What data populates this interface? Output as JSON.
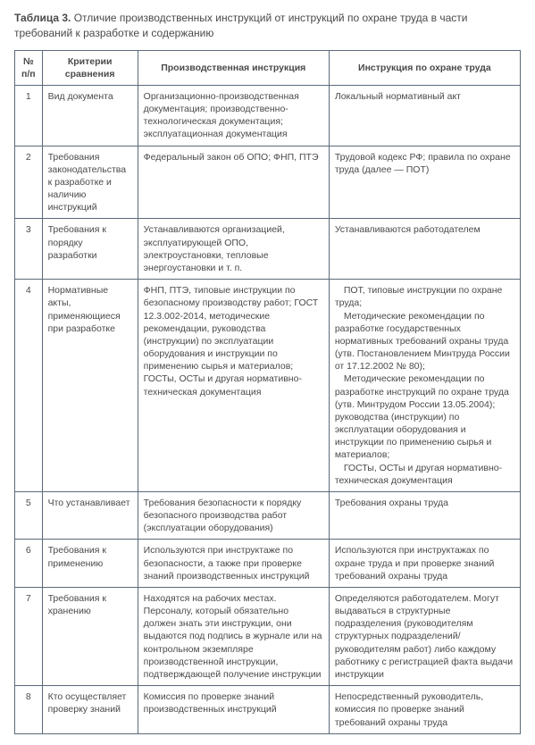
{
  "caption": {
    "bold": "Таблица 3.",
    "rest": " Отличие производственных инструкций от инструкций по охране труда в части требований к разработке и содержанию"
  },
  "headers": {
    "num": "№ п/п",
    "criteria": "Критерии сравнения",
    "prod": "Производственная инструкция",
    "safety": "Инструкция по охране труда"
  },
  "rows": [
    {
      "n": "1",
      "crit": "Вид документа",
      "prod": "Организационно-производственная документация; производственно-технологическая документация; эксплуатационная документация",
      "safety": "Локальный нормативный акт"
    },
    {
      "n": "2",
      "crit": "Требования законодательства к разработке и наличию инструкций",
      "prod": "Федеральный закон об ОПО; ФНП, ПТЭ",
      "safety": "Трудовой кодекс РФ; правила по охране труда (далее — ПОТ)"
    },
    {
      "n": "3",
      "crit": "Требования к порядку разработки",
      "prod": "Устанавливаются организацией, эксплуатирующей ОПО, электроустановки, тепловые энергоустановки и т. п.",
      "safety": "Устанавливаются работодателем"
    },
    {
      "n": "4",
      "crit": "Нормативные акты, применяющиеся при разработке",
      "prod": "ФНП, ПТЭ, типовые инструкции по безопасному производству работ; ГОСТ 12.3.002-2014, методические рекомендации, руководства (инструкции) по эксплуатации оборудования и инструкции по применению сырья и материалов; ГОСТы, ОСТы и другая нормативно-техническая документация",
      "safety_multi": [
        "ПОТ, типовые инструкции по охране труда;",
        "Методические рекомендации по разработке государственных нормативных требований охраны труда (утв. Постановлением Минтруда России от 17.12.2002 № 80);",
        "Методические рекомендации по разработке инструкций по охране труда (утв. Минтрудом России 13.05.2004); руководства (инструкции) по эксплуатации оборудования и инструкции по применению сырья и материалов;",
        "ГОСТы, ОСТы и другая нормативно-техническая документация"
      ]
    },
    {
      "n": "5",
      "crit": "Что устанавливает",
      "prod": "Требования безопасности к порядку безопасного производства работ (эксплуатации оборудования)",
      "safety": "Требования охраны труда"
    },
    {
      "n": "6",
      "crit": "Требования к применению",
      "prod": "Используются при инструктаже по безопасности, а также при проверке знаний производственных инструкций",
      "safety": "Используются при инструктажах по охране труда и при проверке знаний требований охраны труда"
    },
    {
      "n": "7",
      "crit": "Требования к хранению",
      "prod": "Находятся на рабочих местах. Персоналу, который обязательно должен знать эти инструкции, они выдаются под подпись в журнале или на контрольном экземпляре производственной инструкции, подтверждающей получение инструкции",
      "safety": "Определяются работодателем. Могут выдаваться в структурные подразделения (руководителям структурных подразделений/руководителям работ) либо каждому работнику с регистрацией факта выдачи инструкции"
    },
    {
      "n": "8",
      "crit": "Кто осуществляет проверку знаний",
      "prod": "Комиссия по проверке знаний производственных инструкций",
      "safety": "Непосредственный руководитель, комиссия по проверке знаний требований охраны труда"
    }
  ]
}
